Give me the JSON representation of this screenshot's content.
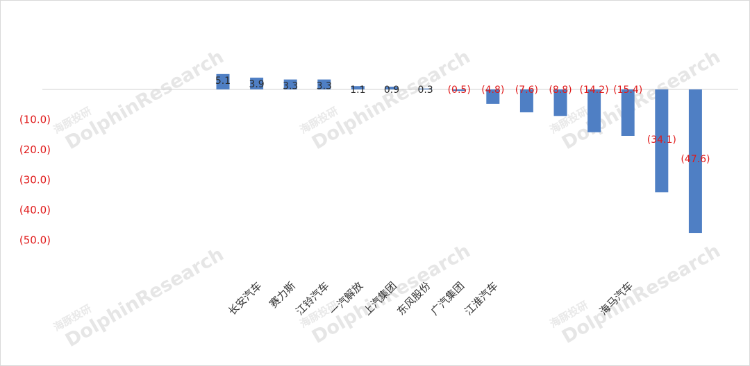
{
  "chart_data": {
    "type": "bar",
    "categories": [
      "",
      "",
      "",
      "",
      "",
      "",
      "长安汽车",
      "赛力斯",
      "江铃汽车",
      "一汽解放",
      "上汽集团",
      "东风股份",
      "广汽集团",
      "江淮汽车",
      "",
      "",
      "",
      "海马汽车",
      "",
      ""
    ],
    "values": [
      null,
      null,
      null,
      null,
      null,
      5.1,
      3.9,
      3.3,
      3.3,
      1.1,
      0.9,
      0.3,
      -0.5,
      -4.8,
      -7.6,
      -8.8,
      -14.2,
      -15.4,
      -34.1,
      -47.6
    ],
    "value_labels": [
      "",
      "",
      "",
      "",
      "",
      "5.1",
      "3.9",
      "3.3",
      "3.3",
      "1.1",
      "0.9",
      "0.3",
      "(0.5)",
      "(4.8)",
      "(7.6)",
      "(8.8)",
      "(14.2)",
      "(15.4)",
      "(34.1)",
      "(47.6)"
    ],
    "y_tick_labels": [
      "(10.0)",
      "(20.0)",
      "(30.0)",
      "(40.0)",
      "(50.0)"
    ],
    "y_ticks": [
      -10,
      -20,
      -30,
      -40,
      -50
    ],
    "ylim": [
      -50,
      0
    ],
    "grid": false,
    "colors": {
      "bar": "#4f7fc4",
      "negative_label": "#e01919",
      "positive_label": "#2a2a2a",
      "axis_label": "#e01919"
    }
  },
  "watermark": {
    "text": "DolphinResearch",
    "text_cn": "海豚投研"
  }
}
